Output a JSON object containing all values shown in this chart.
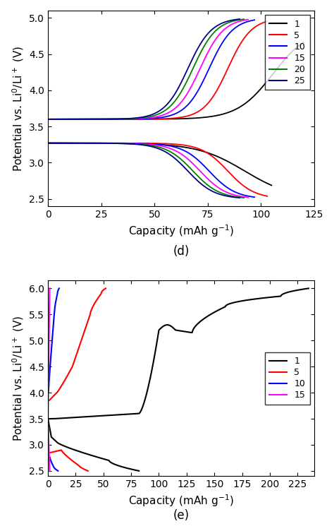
{
  "title_d": "(d)",
  "title_e": "(e)",
  "ylabel": "Potential vs. Li$^0$/Li$^+$ (V)",
  "xlabel": "Capacity (mAh g$^{-1}$)",
  "subplot_d": {
    "xlim": [
      0,
      125
    ],
    "ylim": [
      2.4,
      5.1
    ],
    "xticks": [
      0,
      25,
      50,
      75,
      100,
      125
    ],
    "yticks": [
      2.5,
      3.0,
      3.5,
      4.0,
      4.5,
      5.0
    ],
    "legend_labels": [
      "1",
      "5",
      "10",
      "15",
      "20",
      "25"
    ],
    "legend_colors": [
      "black",
      "red",
      "blue",
      "magenta",
      "green",
      "#00008B"
    ]
  },
  "subplot_e": {
    "xlim": [
      0,
      240
    ],
    "ylim": [
      2.4,
      6.15
    ],
    "xticks": [
      0,
      25,
      50,
      75,
      100,
      125,
      150,
      175,
      200,
      225
    ],
    "yticks": [
      2.5,
      3.0,
      3.5,
      4.0,
      4.5,
      5.0,
      5.5,
      6.0
    ],
    "legend_labels": [
      "1",
      "5",
      "10",
      "15"
    ],
    "legend_colors": [
      "black",
      "red",
      "blue",
      "magenta"
    ]
  }
}
